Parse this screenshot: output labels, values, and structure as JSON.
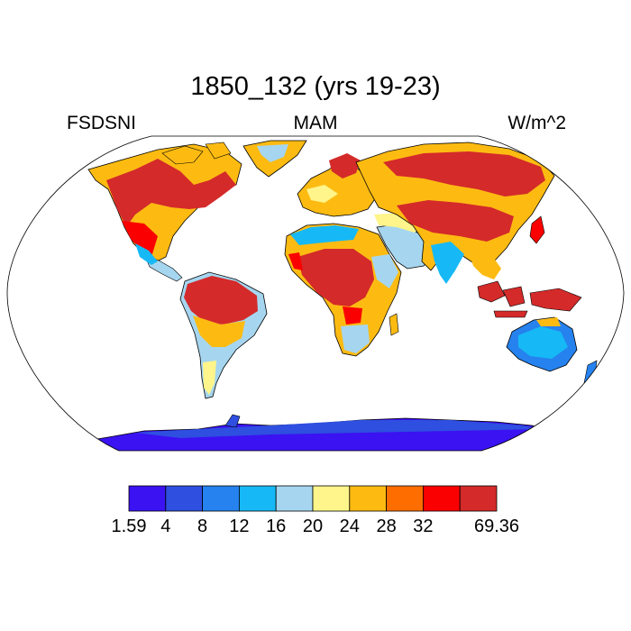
{
  "title": "1850_132 (yrs 19-23)",
  "subtitle_left": "FSDSNI",
  "subtitle_center": "MAM",
  "subtitle_right": "W/m^2",
  "map": {
    "projection": "robinson",
    "ocean_color": "#ffffff",
    "coastline_color": "#000000"
  },
  "colorbar": {
    "colors": [
      "#3b12f2",
      "#2e4fe0",
      "#2682ee",
      "#16b9f5",
      "#a6d6ef",
      "#fff58a",
      "#fdbb12",
      "#fd6d00",
      "#fa0000",
      "#d42a2a"
    ],
    "labels": [
      "1.59",
      "4",
      "8",
      "12",
      "16",
      "20",
      "24",
      "28",
      "32",
      "69.36"
    ]
  },
  "chart_data": {
    "type": "heatmap",
    "title": "1850_132 (yrs 19-23)",
    "variable": "FSDSNI",
    "season": "MAM",
    "units": "W/m^2",
    "levels": [
      1.59,
      4,
      8,
      12,
      16,
      20,
      24,
      28,
      32,
      69.36
    ],
    "regions": [
      {
        "name": "Antarctica",
        "value": 2
      },
      {
        "name": "Greenland interior",
        "value": 18
      },
      {
        "name": "Australia",
        "value": 14
      },
      {
        "name": "Central Africa",
        "value": 50
      },
      {
        "name": "Amazon",
        "value": 45
      },
      {
        "name": "Southeast Asia",
        "value": 40
      },
      {
        "name": "Central Asia",
        "value": 40
      }
    ]
  }
}
